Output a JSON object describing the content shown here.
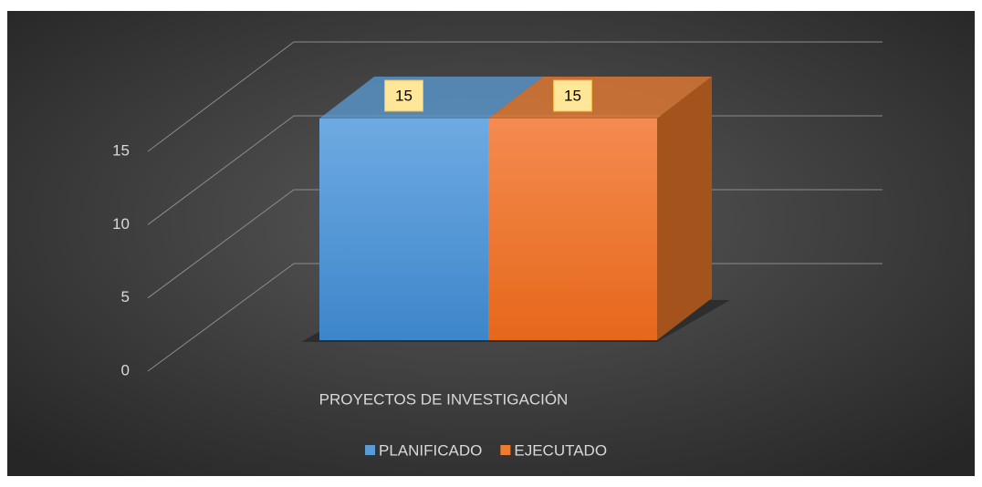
{
  "chart_data": {
    "type": "bar3d",
    "categories": [
      "PROYECTOS DE INVESTIGACIÓN"
    ],
    "series": [
      {
        "name": "PLANIFICADO",
        "color": "#5b9bd5",
        "values": [
          15
        ]
      },
      {
        "name": "EJECUTADO",
        "color": "#ed7d31",
        "values": [
          15
        ]
      }
    ],
    "ylim": [
      0,
      15
    ],
    "yticks": [
      0,
      5,
      10,
      15
    ],
    "grid": true,
    "legend": "bottom"
  }
}
